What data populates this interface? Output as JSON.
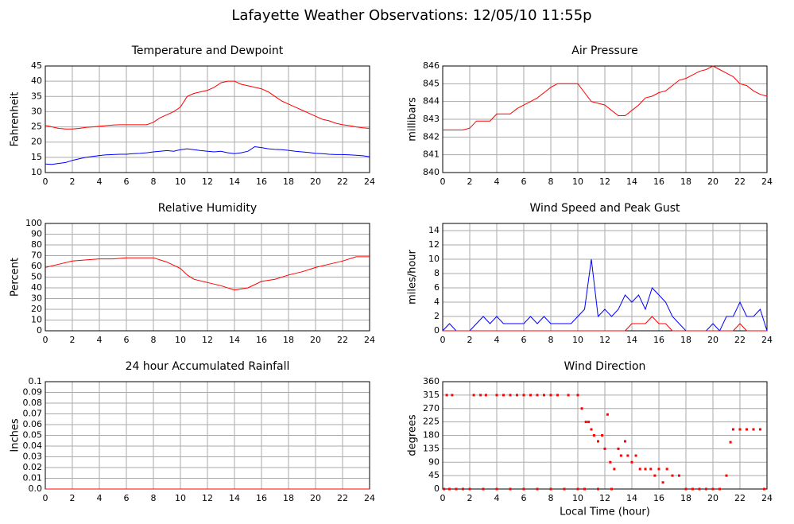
{
  "title": "Lafayette Weather Observations: 12/05/10 11:55p",
  "chart_data": [
    {
      "type": "line",
      "title": "Temperature and Dewpoint",
      "ylabel": "Fahrenheit",
      "x": [
        0,
        0.5,
        1,
        1.5,
        2,
        2.5,
        3,
        3.5,
        4,
        4.5,
        5,
        5.5,
        6,
        6.5,
        7,
        7.5,
        8,
        8.5,
        9,
        9.5,
        10,
        10.5,
        11,
        11.5,
        12,
        12.5,
        13,
        13.5,
        14,
        14.5,
        15,
        15.5,
        16,
        16.5,
        17,
        17.5,
        18,
        18.5,
        19,
        19.5,
        20,
        20.5,
        21,
        21.5,
        22,
        22.5,
        23,
        23.5,
        24
      ],
      "series": [
        {
          "color": "#ff0000",
          "values": [
            25.5,
            25,
            24.5,
            24.3,
            24.3,
            24.5,
            24.8,
            25,
            25.2,
            25.4,
            25.6,
            25.7,
            25.7,
            25.7,
            25.7,
            25.7,
            26.5,
            28,
            29,
            30,
            31.5,
            35,
            36,
            36.5,
            37,
            38,
            39.5,
            40,
            40,
            39,
            38.5,
            38,
            37.5,
            36.5,
            35,
            33.5,
            32.5,
            31.5,
            30.5,
            29.5,
            28.5,
            27.5,
            27,
            26.2,
            25.7,
            25.4,
            25,
            24.7,
            24.5
          ]
        },
        {
          "color": "#0000ff",
          "values": [
            12.8,
            12.7,
            13,
            13.3,
            14,
            14.5,
            15,
            15.3,
            15.6,
            15.8,
            15.9,
            16,
            16,
            16.2,
            16.3,
            16.5,
            16.8,
            17,
            17.2,
            17,
            17.5,
            17.8,
            17.5,
            17.2,
            17,
            16.8,
            17,
            16.5,
            16.2,
            16.5,
            17,
            18.5,
            18.2,
            17.8,
            17.6,
            17.5,
            17.3,
            17,
            16.8,
            16.6,
            16.3,
            16.2,
            16,
            15.9,
            15.9,
            15.8,
            15.7,
            15.5,
            15.2
          ]
        }
      ],
      "xlim": [
        0,
        24
      ],
      "xticks": [
        0,
        2,
        4,
        6,
        8,
        10,
        12,
        14,
        16,
        18,
        20,
        22,
        24
      ],
      "ylim": [
        10,
        45
      ],
      "yticks": [
        10,
        15,
        20,
        25,
        30,
        35,
        40,
        45
      ],
      "grid": true
    },
    {
      "type": "line",
      "title": "Air Pressure",
      "ylabel": "millibars",
      "x": [
        0,
        0.5,
        1,
        1.5,
        2,
        2.5,
        3,
        3.5,
        4,
        4.5,
        5,
        5.5,
        6,
        6.5,
        7,
        7.5,
        8,
        8.5,
        9,
        9.5,
        10,
        10.5,
        11,
        11.5,
        12,
        12.5,
        13,
        13.5,
        14,
        14.5,
        15,
        15.5,
        16,
        16.5,
        17,
        17.5,
        18,
        18.5,
        19,
        19.5,
        20,
        20.5,
        21,
        21.5,
        22,
        22.5,
        23,
        23.5,
        24
      ],
      "series": [
        {
          "color": "#ff0000",
          "values": [
            842.4,
            842.4,
            842.4,
            842.4,
            842.5,
            842.9,
            842.9,
            842.9,
            843.3,
            843.3,
            843.3,
            843.6,
            843.8,
            844,
            844.2,
            844.5,
            844.8,
            845,
            845,
            845,
            845,
            844.5,
            844,
            843.9,
            843.8,
            843.5,
            843.2,
            843.2,
            843.5,
            843.8,
            844.2,
            844.3,
            844.5,
            844.6,
            844.9,
            845.2,
            845.3,
            845.5,
            845.7,
            845.8,
            846,
            845.8,
            845.6,
            845.4,
            845,
            844.9,
            844.6,
            844.4,
            844.3
          ]
        }
      ],
      "xlim": [
        0,
        24
      ],
      "xticks": [
        0,
        2,
        4,
        6,
        8,
        10,
        12,
        14,
        16,
        18,
        20,
        22,
        24
      ],
      "ylim": [
        840,
        846
      ],
      "yticks": [
        840,
        841,
        842,
        843,
        844,
        845,
        846
      ],
      "grid": true
    },
    {
      "type": "line",
      "title": "Relative Humidity",
      "ylabel": "Percent",
      "x": [
        0,
        1,
        2,
        3,
        4,
        5,
        6,
        7,
        8,
        9,
        10,
        10.5,
        11,
        12,
        13,
        14,
        15,
        16,
        17,
        18,
        19,
        20,
        21,
        22,
        23,
        24
      ],
      "series": [
        {
          "color": "#ff0000",
          "values": [
            59,
            62,
            65,
            66,
            67,
            67,
            68,
            68,
            68,
            64,
            58,
            52,
            48,
            45,
            42,
            38,
            40,
            46,
            48,
            52,
            55,
            59,
            62,
            65,
            69,
            69
          ]
        }
      ],
      "xlim": [
        0,
        24
      ],
      "xticks": [
        0,
        2,
        4,
        6,
        8,
        10,
        12,
        14,
        16,
        18,
        20,
        22,
        24
      ],
      "ylim": [
        0,
        100
      ],
      "yticks": [
        0,
        10,
        20,
        30,
        40,
        50,
        60,
        70,
        80,
        90,
        100
      ],
      "grid": true
    },
    {
      "type": "line",
      "title": "Wind Speed and Peak Gust",
      "ylabel": "miles/hour",
      "x": [
        0,
        0.5,
        1,
        1.5,
        2,
        2.5,
        3,
        3.5,
        4,
        4.5,
        5,
        5.5,
        6,
        6.5,
        7,
        7.5,
        8,
        8.5,
        9,
        9.5,
        10,
        10.5,
        11,
        11.5,
        12,
        12.5,
        13,
        13.5,
        14,
        14.5,
        15,
        15.5,
        16,
        16.5,
        17,
        17.5,
        18,
        18.5,
        19,
        19.5,
        20,
        20.5,
        21,
        21.5,
        22,
        22.5,
        23,
        23.5,
        24
      ],
      "series": [
        {
          "color": "#0000ff",
          "values": [
            0,
            1,
            0,
            0,
            0,
            1,
            2,
            1,
            2,
            1,
            1,
            1,
            1,
            2,
            1,
            2,
            1,
            1,
            1,
            1,
            2,
            3,
            10,
            2,
            3,
            2,
            3,
            5,
            4,
            5,
            3,
            6,
            5,
            4,
            2,
            1,
            0,
            0,
            0,
            0,
            1,
            0,
            2,
            2,
            4,
            2,
            2,
            3,
            0
          ]
        },
        {
          "color": "#ff0000",
          "values": [
            0,
            0,
            0,
            0,
            0,
            0,
            0,
            0,
            0,
            0,
            0,
            0,
            0,
            0,
            0,
            0,
            0,
            0,
            0,
            0,
            0,
            0,
            0,
            0,
            0,
            0,
            0,
            0,
            1,
            1,
            1,
            2,
            1,
            1,
            0,
            0,
            0,
            0,
            0,
            0,
            0,
            0,
            0,
            0,
            1,
            0,
            0,
            0,
            0
          ]
        }
      ],
      "xlim": [
        0,
        24
      ],
      "xticks": [
        0,
        2,
        4,
        6,
        8,
        10,
        12,
        14,
        16,
        18,
        20,
        22,
        24
      ],
      "ylim": [
        0,
        15
      ],
      "yticks": [
        0,
        2,
        4,
        6,
        8,
        10,
        12,
        14
      ],
      "grid": true
    },
    {
      "type": "line",
      "title": "24 hour Accumulated Rainfall",
      "ylabel": "Inches",
      "x": [
        0,
        24
      ],
      "series": [
        {
          "color": "#ff0000",
          "values": [
            0,
            0
          ]
        }
      ],
      "xlim": [
        0,
        24
      ],
      "xticks": [
        0,
        2,
        4,
        6,
        8,
        10,
        12,
        14,
        16,
        18,
        20,
        22,
        24
      ],
      "ylim": [
        0,
        0.1
      ],
      "yticks": [
        {
          "value": 0,
          "label": "0.0"
        },
        0.01,
        0.02,
        0.03,
        0.04,
        0.05,
        0.06,
        0.07,
        0.08,
        0.09,
        0.1
      ],
      "grid": true
    },
    {
      "type": "scatter",
      "title": "Wind Direction",
      "ylabel": "degrees",
      "xlabel": "Local Time (hour)",
      "x": [
        0.3,
        0.7,
        2.3,
        2.8,
        3.2,
        4,
        4.5,
        5,
        5.5,
        6,
        6.5,
        7,
        7.5,
        8,
        8.5,
        9.3,
        10,
        10.3,
        10.6,
        10.8,
        11,
        11.2,
        11.5,
        11.8,
        12,
        12.2,
        12.4,
        12.7,
        13,
        13.2,
        13.5,
        13.7,
        14,
        14.3,
        14.6,
        15,
        15.4,
        15.7,
        16,
        16.3,
        16.6,
        17,
        17.5,
        21,
        21.3,
        21.5,
        22,
        22.5,
        23,
        23.5,
        0.1,
        0.5,
        1,
        1.5,
        2,
        3,
        4,
        5,
        6,
        7,
        8,
        9,
        10,
        10.5,
        11.5,
        12.5,
        18,
        18.5,
        19,
        19.5,
        20,
        20.5,
        23.8
      ],
      "series": [
        {
          "color": "#ff0000",
          "values": [
            315,
            315,
            315,
            315,
            315,
            315,
            315,
            315,
            315,
            315,
            315,
            315,
            315,
            315,
            315,
            315,
            315,
            270,
            225,
            225,
            200,
            180,
            160,
            180,
            135,
            250,
            90,
            67,
            135,
            112,
            160,
            112,
            90,
            112,
            67,
            67,
            67,
            45,
            67,
            22,
            67,
            45,
            45,
            45,
            157,
            200,
            200,
            200,
            200,
            200,
            0,
            0,
            0,
            0,
            0,
            0,
            0,
            0,
            0,
            0,
            0,
            0,
            0,
            0,
            0,
            0,
            0,
            0,
            0,
            0,
            0,
            0,
            0
          ]
        }
      ],
      "xlim": [
        0,
        24
      ],
      "xticks": [
        0,
        2,
        4,
        6,
        8,
        10,
        12,
        14,
        16,
        18,
        20,
        22,
        24
      ],
      "ylim": [
        0,
        360
      ],
      "yticks": [
        0,
        45,
        90,
        135,
        180,
        225,
        270,
        315,
        360
      ],
      "grid": true
    }
  ]
}
